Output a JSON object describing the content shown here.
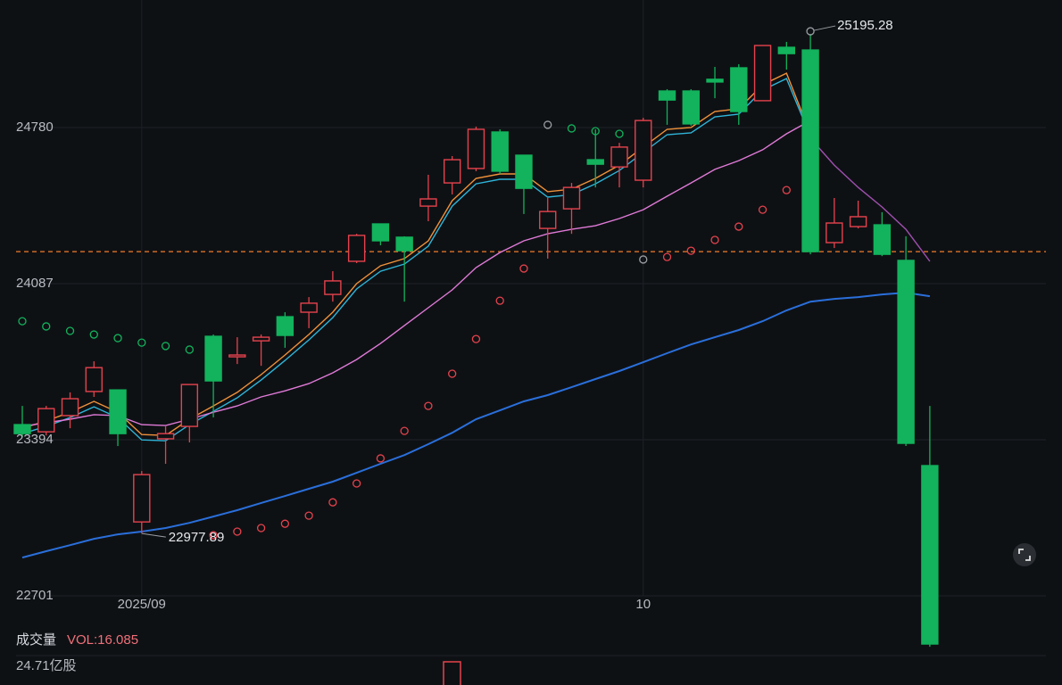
{
  "chart_data": {
    "type": "candlestick",
    "categories": [
      null,
      null,
      null,
      null,
      null,
      "2025/09",
      null,
      null,
      null,
      null,
      null,
      null,
      null,
      null,
      null,
      null,
      null,
      null,
      null,
      null,
      null,
      null,
      null,
      null,
      null,
      null,
      "10",
      null,
      null,
      null,
      null,
      null,
      null,
      null,
      null,
      null,
      null,
      null,
      null
    ],
    "candles": {
      "open": [
        23461,
        23429,
        23501,
        23608,
        23615,
        23029,
        23398,
        23453,
        23853,
        23762,
        23833,
        23940,
        23960,
        24039,
        24186,
        24352,
        24293,
        24431,
        24534,
        24598,
        24760,
        24657,
        24332,
        24419,
        24637,
        24605,
        24546,
        24942,
        24942,
        24994,
        25045,
        24899,
        25136,
        25124,
        24269,
        24340,
        24348,
        24190,
        23279
      ],
      "high": [
        23544,
        23544,
        23604,
        23742,
        23615,
        23255,
        23453,
        23639,
        23861,
        23849,
        23861,
        23960,
        24027,
        24142,
        24308,
        24352,
        24297,
        24570,
        24653,
        24784,
        24772,
        24657,
        24467,
        24534,
        24772,
        24712,
        24823,
        24950,
        24950,
        25049,
        25061,
        25144,
        25160,
        25195.28,
        24467,
        24455,
        24404,
        24297,
        23544
      ],
      "low": [
        23406,
        23413,
        23445,
        23584,
        23366,
        22977.89,
        23287,
        23382,
        23493,
        23730,
        23722,
        23802,
        23889,
        24007,
        24178,
        24257,
        24007,
        24364,
        24483,
        24586,
        24574,
        24396,
        24198,
        24308,
        24514,
        24514,
        24514,
        24792,
        24788,
        24910,
        24792,
        24899,
        25037,
        24217,
        24245,
        24332,
        24209,
        23366,
        22475
      ],
      "close": [
        23421,
        23532,
        23576,
        23714,
        23421,
        23239,
        23421,
        23639,
        23655,
        23770,
        23849,
        23857,
        24000,
        24099,
        24301,
        24277,
        24233,
        24463,
        24637,
        24772,
        24586,
        24510,
        24407,
        24514,
        24617,
        24693,
        24811,
        24902,
        24796,
        24982,
        24851,
        25144,
        25108,
        24229,
        24356,
        24384,
        24217,
        23378,
        22487
      ],
      "up_color": "#e5424d",
      "down_color": "#12b35c"
    },
    "lines": [
      {
        "color": "#f0913a",
        "values": [
          23445,
          23477,
          23516,
          23564,
          23516,
          23417,
          23413,
          23485,
          23544,
          23604,
          23683,
          23770,
          23861,
          23960,
          24087,
          24166,
          24198,
          24277,
          24455,
          24554,
          24574,
          24574,
          24495,
          24506,
          24554,
          24613,
          24693,
          24772,
          24780,
          24851,
          24863,
          24970,
          25021,
          24752,
          null,
          null,
          null,
          null,
          null
        ]
      },
      {
        "color": "#2fb4d8",
        "values": [
          23421,
          23453,
          23492,
          23540,
          23492,
          23393,
          23389,
          23461,
          23520,
          23580,
          23659,
          23746,
          23837,
          23936,
          24063,
          24142,
          24174,
          24253,
          24431,
          24530,
          24550,
          24550,
          24471,
          24482,
          24530,
          24589,
          24669,
          24748,
          24756,
          24827,
          24839,
          24946,
          24997,
          24740,
          null,
          null,
          null,
          null,
          null
        ]
      },
      {
        "color": "#e07ad8",
        "values": [
          23453,
          23469,
          23485,
          23505,
          23501,
          23461,
          23457,
          23485,
          23516,
          23544,
          23584,
          23611,
          23643,
          23691,
          23750,
          23821,
          23901,
          23980,
          24059,
          24158,
          24225,
          24277,
          24308,
          24328,
          24344,
          24376,
          24415,
          24475,
          24534,
          24594,
          24633,
          24681,
          24752,
          24811,
          null,
          null,
          null,
          null,
          null
        ]
      },
      {
        "color": "#a050b0",
        "values": [
          null,
          null,
          null,
          null,
          null,
          null,
          null,
          null,
          null,
          null,
          null,
          null,
          null,
          null,
          null,
          null,
          null,
          null,
          null,
          null,
          null,
          null,
          null,
          null,
          null,
          null,
          null,
          null,
          null,
          null,
          null,
          null,
          null,
          24732,
          24613,
          24514,
          24427,
          24328,
          24186
        ]
      },
      {
        "color": "#2a6fdb",
        "values": [
          22871,
          22899,
          22926,
          22954,
          22974,
          22986,
          23002,
          23025,
          23053,
          23081,
          23113,
          23144,
          23176,
          23208,
          23247,
          23287,
          23326,
          23374,
          23425,
          23485,
          23524,
          23564,
          23592,
          23627,
          23663,
          23699,
          23738,
          23778,
          23817,
          23849,
          23881,
          23920,
          23968,
          24007,
          24019,
          24027,
          24039,
          24047,
          24031
        ]
      }
    ],
    "sar": {
      "values": [
        23920,
        23897,
        23877,
        23861,
        23845,
        23825,
        23810,
        23794,
        22970,
        22986,
        23002,
        23021,
        23057,
        23116,
        23200,
        23311,
        23433,
        23544,
        23687,
        23841,
        24011,
        24154,
        24792,
        24776,
        24764,
        24752,
        24194,
        24205,
        24233,
        24281,
        24340,
        24415,
        24502,
        null,
        null,
        null,
        null,
        null,
        null
      ],
      "colors": [
        "#12b35c",
        "#12b35c",
        "#12b35c",
        "#12b35c",
        "#12b35c",
        "#12b35c",
        "#12b35c",
        "#12b35c",
        "#e5424d",
        "#e5424d",
        "#e5424d",
        "#e5424d",
        "#e5424d",
        "#e5424d",
        "#e5424d",
        "#e5424d",
        "#e5424d",
        "#e5424d",
        "#e5424d",
        "#e5424d",
        "#e5424d",
        "#e5424d",
        "#9a9ea3",
        "#12b35c",
        "#12b35c",
        "#12b35c",
        "#9a9ea3",
        "#e5424d",
        "#e5424d",
        "#e5424d",
        "#e5424d",
        "#e5424d",
        "#e5424d",
        null,
        null,
        null,
        null,
        null,
        null
      ]
    },
    "last_price": 24229,
    "last_price_color": "#f07a2a",
    "ylim": [
      22701,
      25346
    ],
    "yticks": [
      22701,
      23394,
      24087,
      24780
    ],
    "grid": true,
    "volume": {
      "title": "成交量",
      "indicator": "VOL:16.085",
      "level": "24.71亿股"
    }
  }
}
